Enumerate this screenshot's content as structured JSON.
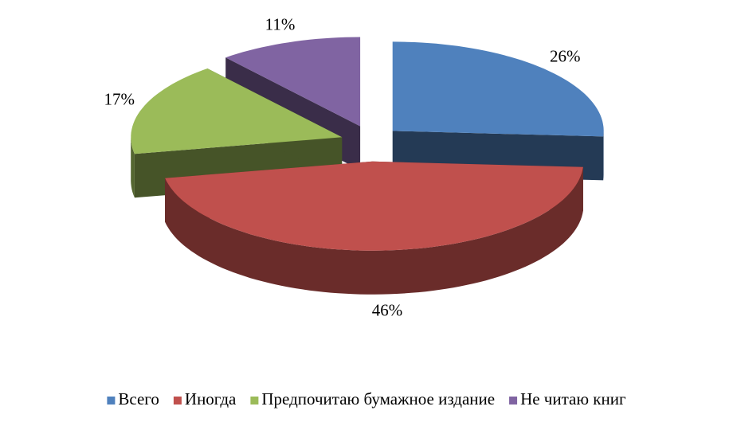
{
  "chart_data": {
    "type": "pie3d",
    "categories": [
      "Всего",
      "Иногда",
      "Предпочитаю бумажное издание",
      "Не читаю книг"
    ],
    "values": [
      26,
      46,
      17,
      11
    ],
    "value_labels": [
      "26%",
      "46%",
      "17%",
      "11%"
    ],
    "colors": [
      "#4f81bd",
      "#c0504d",
      "#9bbb59",
      "#8064a2"
    ],
    "legend": "bottom"
  }
}
